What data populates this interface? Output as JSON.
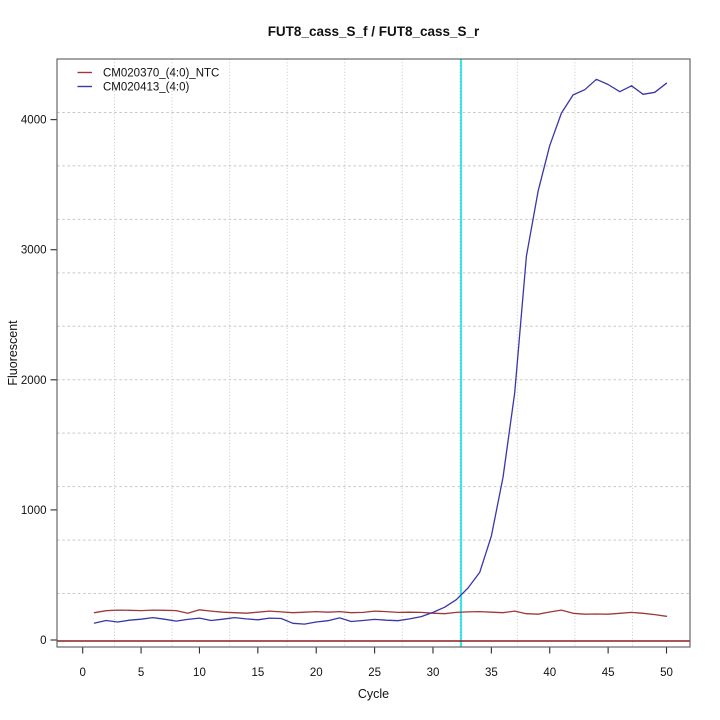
{
  "figure": {
    "title": "FUT8_cass_S_f / FUT8_cass_S_r",
    "x_axis_label": "Cycle",
    "y_axis_label": "Fluorescent"
  },
  "legend": {
    "position": "top-left",
    "items": [
      {
        "label": "CM020370_(4:0)_NTC",
        "color": "#9e3939"
      },
      {
        "label": "CM020413_(4:0)",
        "color": "#3737aa"
      }
    ]
  },
  "chart_data": {
    "type": "line",
    "title": "FUT8_cass_S_f / FUT8_cass_S_r",
    "xlabel": "Cycle",
    "ylabel": "Fluorescent",
    "xlim": [
      -2.2,
      52.0
    ],
    "ylim": [
      -54,
      4466
    ],
    "x_ticks": [
      0,
      5,
      10,
      15,
      20,
      25,
      30,
      35,
      40,
      45,
      50
    ],
    "y_ticks": [
      0,
      1000,
      2000,
      3000,
      4000
    ],
    "grid": {
      "visible": true,
      "nx": 11,
      "ny": 11,
      "color": "#c8c8c8"
    },
    "x": [
      1,
      2,
      3,
      4,
      5,
      6,
      7,
      8,
      9,
      10,
      11,
      12,
      13,
      14,
      15,
      16,
      17,
      18,
      19,
      20,
      21,
      22,
      23,
      24,
      25,
      26,
      27,
      28,
      29,
      30,
      31,
      32,
      33,
      34,
      35,
      36,
      37,
      38,
      39,
      40,
      41,
      42,
      43,
      44,
      45,
      46,
      47,
      48,
      49,
      50
    ],
    "series": [
      {
        "name": "CM020370_(4:0)_NTC",
        "color": "#9e3939",
        "values": [
          210,
          225,
          230,
          228,
          226,
          230,
          228,
          226,
          205,
          232,
          222,
          214,
          210,
          206,
          214,
          222,
          216,
          210,
          214,
          218,
          214,
          218,
          210,
          212,
          222,
          218,
          212,
          214,
          212,
          206,
          202,
          212,
          216,
          218,
          214,
          210,
          222,
          202,
          198,
          215,
          230,
          205,
          198,
          200,
          198,
          205,
          212,
          205,
          195,
          182
        ]
      },
      {
        "name": "CM020413_(4:0)",
        "color": "#3737aa",
        "values": [
          130,
          150,
          138,
          152,
          160,
          172,
          160,
          145,
          158,
          168,
          150,
          160,
          172,
          162,
          155,
          168,
          165,
          128,
          122,
          138,
          148,
          170,
          142,
          150,
          158,
          152,
          148,
          162,
          180,
          212,
          252,
          310,
          400,
          520,
          800,
          1250,
          1900,
          2950,
          3450,
          3800,
          4050,
          4190,
          4230,
          4310,
          4270,
          4215,
          4260,
          4195,
          4210,
          4280
        ]
      }
    ],
    "threshold_line": {
      "x": 32.4,
      "color": "#00e4e4",
      "orientation": "vertical"
    },
    "baseline": {
      "y": 0,
      "color": "#8b1f1f",
      "orientation": "horizontal"
    }
  }
}
